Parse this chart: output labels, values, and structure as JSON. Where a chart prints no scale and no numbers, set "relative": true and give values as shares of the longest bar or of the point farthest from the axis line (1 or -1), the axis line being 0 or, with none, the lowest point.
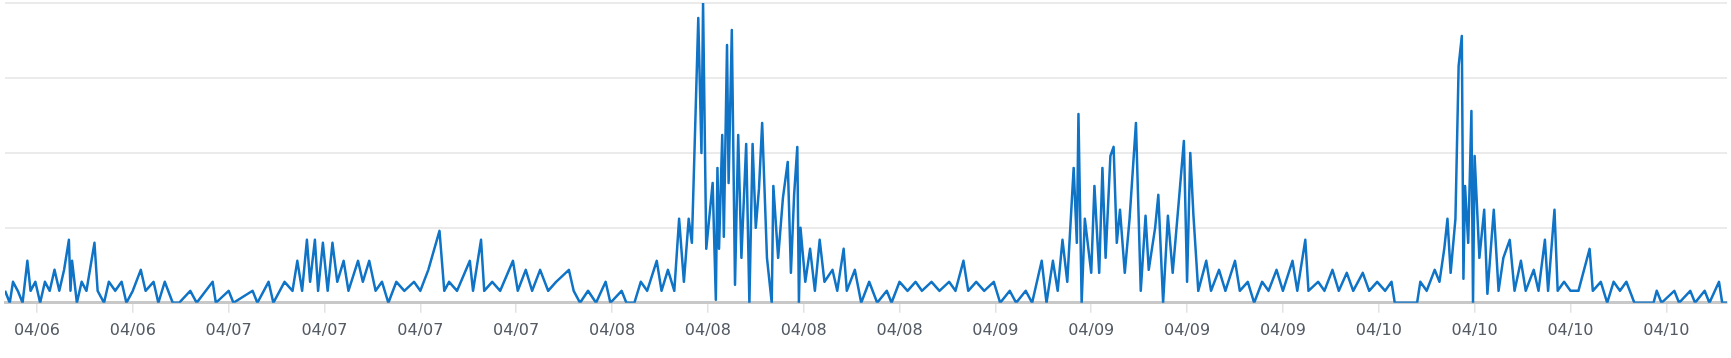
{
  "chart_data": {
    "type": "line",
    "relative": true,
    "color": "#0f73c6",
    "marker": "none",
    "legend": false,
    "grid": "y",
    "xlim": [
      "--04-06T10:00",
      "--04-10T21:48"
    ],
    "xticks": [
      {
        "value": "--04-06T12:00",
        "label": "04/06"
      },
      {
        "value": "--04-06T18:00",
        "label": "04/06"
      },
      {
        "value": "--04-07T00:00",
        "label": "04/07"
      },
      {
        "value": "--04-07T06:00",
        "label": "04/07"
      },
      {
        "value": "--04-07T12:00",
        "label": "04/07"
      },
      {
        "value": "--04-07T18:00",
        "label": "04/07"
      },
      {
        "value": "--04-08T00:00",
        "label": "04/08"
      },
      {
        "value": "--04-08T06:00",
        "label": "04/08"
      },
      {
        "value": "--04-08T12:00",
        "label": "04/08"
      },
      {
        "value": "--04-08T18:00",
        "label": "04/08"
      },
      {
        "value": "--04-09T00:00",
        "label": "04/09"
      },
      {
        "value": "--04-09T06:00",
        "label": "04/09"
      },
      {
        "value": "--04-09T12:00",
        "label": "04/09"
      },
      {
        "value": "--04-09T18:00",
        "label": "04/09"
      },
      {
        "value": "--04-10T00:00",
        "label": "04/10"
      },
      {
        "value": "--04-10T06:00",
        "label": "04/10"
      },
      {
        "value": "--04-10T12:00",
        "label": "04/10"
      },
      {
        "value": "--04-10T18:00",
        "label": "04/10"
      }
    ],
    "x": [
      "--04-06T10:00",
      "--04-06T10:18",
      "--04-06T10:30",
      "--04-06T10:48",
      "--04-06T11:06",
      "--04-06T11:24",
      "--04-06T11:36",
      "--04-06T11:54",
      "--04-06T12:12",
      "--04-06T12:30",
      "--04-06T12:48",
      "--04-06T13:06",
      "--04-06T13:24",
      "--04-06T13:42",
      "--04-06T14:00",
      "--04-06T14:06",
      "--04-06T14:12",
      "--04-06T14:30",
      "--04-06T14:48",
      "--04-06T15:06",
      "--04-06T15:36",
      "--04-06T15:48",
      "--04-06T16:12",
      "--04-06T16:30",
      "--04-06T16:54",
      "--04-06T17:18",
      "--04-06T17:36",
      "--04-06T18:00",
      "--04-06T18:30",
      "--04-06T18:48",
      "--04-06T19:18",
      "--04-06T19:36",
      "--04-06T20:00",
      "--04-06T20:30",
      "--04-06T20:54",
      "--04-06T21:36",
      "--04-06T22:00",
      "--04-06T23:00",
      "--04-06T23:12",
      "--04-07T00:00",
      "--04-07T00:18",
      "--04-07T01:30",
      "--04-07T01:48",
      "--04-07T02:30",
      "--04-07T02:48",
      "--04-07T03:30",
      "--04-07T04:00",
      "--04-07T04:18",
      "--04-07T04:36",
      "--04-07T04:54",
      "--04-07T05:06",
      "--04-07T05:24",
      "--04-07T05:36",
      "--04-07T05:54",
      "--04-07T06:12",
      "--04-07T06:30",
      "--04-07T06:48",
      "--04-07T07:12",
      "--04-07T07:30",
      "--04-07T08:06",
      "--04-07T08:24",
      "--04-07T08:48",
      "--04-07T09:12",
      "--04-07T09:36",
      "--04-07T10:00",
      "--04-07T10:30",
      "--04-07T11:00",
      "--04-07T11:36",
      "--04-07T12:00",
      "--04-07T12:30",
      "--04-07T13:12",
      "--04-07T13:30",
      "--04-07T13:48",
      "--04-07T14:18",
      "--04-07T15:06",
      "--04-07T15:18",
      "--04-07T15:48",
      "--04-07T16:00",
      "--04-07T16:30",
      "--04-07T17:00",
      "--04-07T17:48",
      "--04-07T18:06",
      "--04-07T18:36",
      "--04-07T19:00",
      "--04-07T19:30",
      "--04-07T20:00",
      "--04-07T20:30",
      "--04-07T21:18",
      "--04-07T21:36",
      "--04-07T22:00",
      "--04-07T22:30",
      "--04-07T23:00",
      "--04-07T23:36",
      "--04-07T23:54",
      "--04-08T00:36",
      "--04-08T00:54",
      "--04-08T01:24",
      "--04-08T01:48",
      "--04-08T02:12",
      "--04-08T02:48",
      "--04-08T03:06",
      "--04-08T03:30",
      "--04-08T03:54",
      "--04-08T04:12",
      "--04-08T04:30",
      "--04-08T04:48",
      "--04-08T05:00",
      "--04-08T05:24",
      "--04-08T05:36",
      "--04-08T05:42",
      "--04-08T05:54",
      "--04-08T06:18",
      "--04-08T06:30",
      "--04-08T06:36",
      "--04-08T06:42",
      "--04-08T06:54",
      "--04-08T07:00",
      "--04-08T07:12",
      "--04-08T07:18",
      "--04-08T07:30",
      "--04-08T07:42",
      "--04-08T07:54",
      "--04-08T08:06",
      "--04-08T08:24",
      "--04-08T08:36",
      "--04-08T08:48",
      "--04-08T09:00",
      "--04-08T09:12",
      "--04-08T09:24",
      "--04-08T09:42",
      "--04-08T10:00",
      "--04-08T10:06",
      "--04-08T10:24",
      "--04-08T10:42",
      "--04-08T11:00",
      "--04-08T11:12",
      "--04-08T11:24",
      "--04-08T11:36",
      "--04-08T11:42",
      "--04-08T11:48",
      "--04-08T12:06",
      "--04-08T12:24",
      "--04-08T12:42",
      "--04-08T13:00",
      "--04-08T13:18",
      "--04-08T13:48",
      "--04-08T14:06",
      "--04-08T14:30",
      "--04-08T14:42",
      "--04-08T15:12",
      "--04-08T15:36",
      "--04-08T16:06",
      "--04-08T16:36",
      "--04-08T17:12",
      "--04-08T17:30",
      "--04-08T18:00",
      "--04-08T18:30",
      "--04-08T19:00",
      "--04-08T19:24",
      "--04-08T20:00",
      "--04-08T20:30",
      "--04-08T21:06",
      "--04-08T21:30",
      "--04-08T22:00",
      "--04-08T22:18",
      "--04-08T22:48",
      "--04-08T23:18",
      "--04-08T23:54",
      "--04-09T00:18",
      "--04-09T00:54",
      "--04-09T01:18",
      "--04-09T01:54",
      "--04-09T02:18",
      "--04-09T02:54",
      "--04-09T03:12",
      "--04-09T03:36",
      "--04-09T03:54",
      "--04-09T04:12",
      "--04-09T04:30",
      "--04-09T04:54",
      "--04-09T05:06",
      "--04-09T05:12",
      "--04-09T05:24",
      "--04-09T05:36",
      "--04-09T06:00",
      "--04-09T06:12",
      "--04-09T06:30",
      "--04-09T06:42",
      "--04-09T06:54",
      "--04-09T07:12",
      "--04-09T07:24",
      "--04-09T07:36",
      "--04-09T07:48",
      "--04-09T08:06",
      "--04-09T08:24",
      "--04-09T08:48",
      "--04-09T09:06",
      "--04-09T09:24",
      "--04-09T09:36",
      "--04-09T10:00",
      "--04-09T10:12",
      "--04-09T10:30",
      "--04-09T10:48",
      "--04-09T11:06",
      "--04-09T11:30",
      "--04-09T11:48",
      "--04-09T12:00",
      "--04-09T12:12",
      "--04-09T12:24",
      "--04-09T12:42",
      "--04-09T13:12",
      "--04-09T13:30",
      "--04-09T14:00",
      "--04-09T14:24",
      "--04-09T15:00",
      "--04-09T15:18",
      "--04-09T15:48",
      "--04-09T16:12",
      "--04-09T16:42",
      "--04-09T17:06",
      "--04-09T17:36",
      "--04-09T18:00",
      "--04-09T18:36",
      "--04-09T18:54",
      "--04-09T19:24",
      "--04-09T19:36",
      "--04-09T20:12",
      "--04-09T20:36",
      "--04-09T21:06",
      "--04-09T21:30",
      "--04-09T22:00",
      "--04-09T22:24",
      "--04-09T23:00",
      "--04-09T23:24",
      "--04-09T23:54",
      "--04-10T00:24",
      "--04-10T00:48",
      "--04-10T01:00",
      "--04-10T02:24",
      "--04-10T02:36",
      "--04-10T03:00",
      "--04-10T03:30",
      "--04-10T03:48",
      "--04-10T04:06",
      "--04-10T04:18",
      "--04-10T04:30",
      "--04-10T04:48",
      "--04-10T05:00",
      "--04-10T05:12",
      "--04-10T05:18",
      "--04-10T05:24",
      "--04-10T05:36",
      "--04-10T05:48",
      "--04-10T05:54",
      "--04-10T06:00",
      "--04-10T06:18",
      "--04-10T06:36",
      "--04-10T06:48",
      "--04-10T07:12",
      "--04-10T07:30",
      "--04-10T07:48",
      "--04-10T08:12",
      "--04-10T08:30",
      "--04-10T08:54",
      "--04-10T09:12",
      "--04-10T09:42",
      "--04-10T10:00",
      "--04-10T10:24",
      "--04-10T10:36",
      "--04-10T11:00",
      "--04-10T11:12",
      "--04-10T11:36",
      "--04-10T12:00",
      "--04-10T12:30",
      "--04-10T13:12",
      "--04-10T13:24",
      "--04-10T13:54",
      "--04-10T14:18",
      "--04-10T14:42",
      "--04-10T15:06",
      "--04-10T15:30",
      "--04-10T16:00",
      "--04-10T17:12",
      "--04-10T17:24",
      "--04-10T17:42",
      "--04-10T18:30",
      "--04-10T18:48",
      "--04-10T19:30",
      "--04-10T19:48",
      "--04-10T20:24",
      "--04-10T20:42",
      "--04-10T21:18",
      "--04-10T21:30",
      "--04-10T21:48"
    ],
    "values": [
      0.04,
      0,
      0.07,
      0.04,
      0,
      0.14,
      0.04,
      0.07,
      0,
      0.07,
      0.04,
      0.11,
      0.04,
      0.11,
      0.21,
      0.04,
      0.14,
      0,
      0.07,
      0.04,
      0.2,
      0.04,
      0,
      0.07,
      0.04,
      0.07,
      0,
      0.04,
      0.11,
      0.04,
      0.07,
      0,
      0.07,
      0,
      0,
      0.04,
      0,
      0.07,
      0,
      0.04,
      0,
      0.04,
      0,
      0.07,
      0,
      0.07,
      0.04,
      0.14,
      0.04,
      0.21,
      0.07,
      0.21,
      0.04,
      0.2,
      0.04,
      0.2,
      0.07,
      0.14,
      0.04,
      0.14,
      0.07,
      0.14,
      0.04,
      0.07,
      0,
      0.07,
      0.04,
      0.07,
      0.04,
      0.11,
      0.24,
      0.04,
      0.07,
      0.04,
      0.14,
      0.04,
      0.21,
      0.04,
      0.07,
      0.04,
      0.14,
      0.04,
      0.11,
      0.04,
      0.11,
      0.04,
      0.07,
      0.11,
      0.04,
      0,
      0.04,
      0,
      0.07,
      0,
      0.04,
      0,
      0,
      0.07,
      0.04,
      0.14,
      0.04,
      0.11,
      0.04,
      0.28,
      0.07,
      0.28,
      0.2,
      0.95,
      0.5,
      1.0,
      0.18,
      0.4,
      0.01,
      0.45,
      0.18,
      0.56,
      0.22,
      0.86,
      0.4,
      0.91,
      0.06,
      0.56,
      0.15,
      0.53,
      0,
      0.53,
      0.25,
      0.38,
      0.6,
      0.15,
      0,
      0.39,
      0.15,
      0.35,
      0.47,
      0.1,
      0.36,
      0.52,
      0,
      0.25,
      0.07,
      0.18,
      0.04,
      0.21,
      0.07,
      0.11,
      0.04,
      0.18,
      0.04,
      0.11,
      0,
      0.07,
      0,
      0.04,
      0,
      0.07,
      0.04,
      0.07,
      0.04,
      0.07,
      0.04,
      0.07,
      0.04,
      0.14,
      0.04,
      0.07,
      0.04,
      0.07,
      0,
      0.04,
      0,
      0.04,
      0,
      0.14,
      0,
      0.14,
      0.04,
      0.21,
      0.07,
      0.45,
      0.2,
      0.63,
      0,
      0.28,
      0.1,
      0.39,
      0.1,
      0.45,
      0.15,
      0.49,
      0.52,
      0.2,
      0.31,
      0.1,
      0.28,
      0.6,
      0.04,
      0.29,
      0.11,
      0.25,
      0.36,
      0,
      0.29,
      0.1,
      0.35,
      0.54,
      0.07,
      0.5,
      0.29,
      0.04,
      0.14,
      0.04,
      0.11,
      0.04,
      0.14,
      0.04,
      0.07,
      0,
      0.07,
      0.04,
      0.11,
      0.04,
      0.14,
      0.04,
      0.21,
      0.04,
      0.07,
      0.04,
      0.11,
      0.04,
      0.1,
      0.04,
      0.1,
      0.04,
      0.07,
      0.04,
      0.07,
      0,
      0,
      0.07,
      0.04,
      0.11,
      0.07,
      0.18,
      0.28,
      0.1,
      0.28,
      0.79,
      0.89,
      0.08,
      0.39,
      0.2,
      0.64,
      0,
      0.49,
      0.15,
      0.31,
      0.03,
      0.31,
      0.04,
      0.15,
      0.21,
      0.04,
      0.14,
      0.04,
      0.11,
      0.04,
      0.21,
      0.04,
      0.31,
      0.04,
      0.07,
      0.04,
      0.04,
      0.18,
      0.04,
      0.07,
      0,
      0.07,
      0.04,
      0.07,
      0,
      0,
      0.04,
      0,
      0.04,
      0,
      0.04,
      0,
      0.04,
      0,
      0.07,
      0,
      0
    ]
  }
}
